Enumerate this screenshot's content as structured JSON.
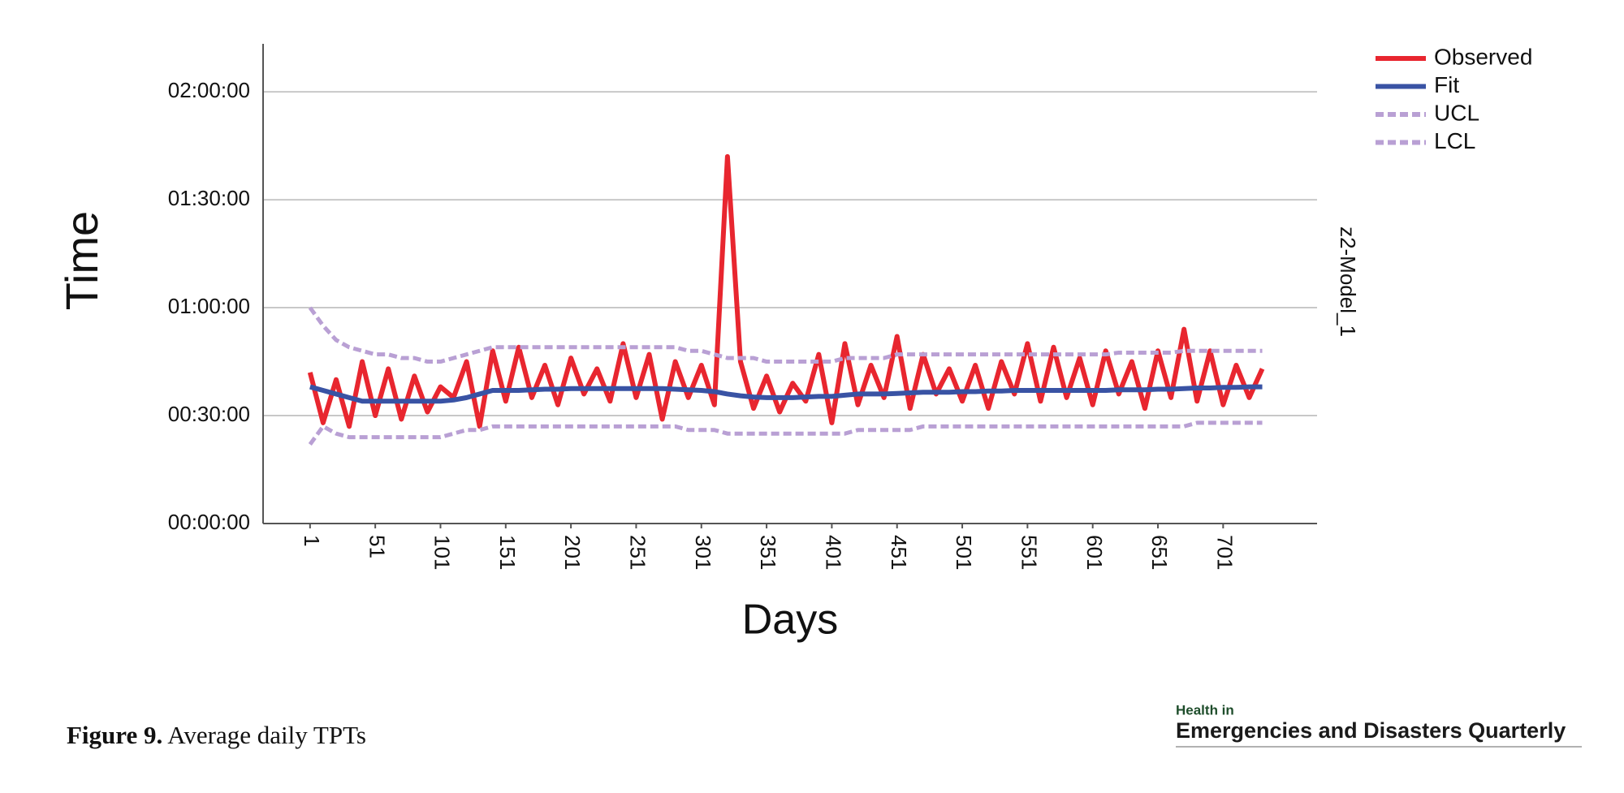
{
  "chart_data": {
    "type": "line",
    "y_axis_label": "Time",
    "x_axis_label": "Days",
    "side_label": "z2-Model_1",
    "x": [
      1,
      11,
      21,
      31,
      41,
      51,
      61,
      71,
      81,
      91,
      101,
      111,
      121,
      131,
      141,
      151,
      161,
      171,
      181,
      191,
      201,
      211,
      221,
      231,
      241,
      251,
      261,
      271,
      281,
      291,
      301,
      311,
      321,
      331,
      341,
      351,
      361,
      371,
      381,
      391,
      401,
      411,
      421,
      431,
      441,
      451,
      461,
      471,
      481,
      491,
      501,
      511,
      521,
      531,
      541,
      551,
      561,
      571,
      581,
      591,
      601,
      611,
      621,
      631,
      641,
      651,
      661,
      671,
      681,
      691,
      701,
      711,
      721,
      731
    ],
    "series": [
      {
        "name": "Observed",
        "color": "#e8262f",
        "dash": false,
        "values": [
          2520,
          1680,
          2400,
          1620,
          2700,
          1800,
          2580,
          1740,
          2460,
          1860,
          2280,
          2100,
          2700,
          1620,
          2880,
          2040,
          2940,
          2100,
          2640,
          1980,
          2760,
          2160,
          2580,
          2040,
          3000,
          2100,
          2820,
          1740,
          2700,
          2100,
          2640,
          1980,
          6120,
          2700,
          1920,
          2460,
          1860,
          2340,
          2040,
          2820,
          1680,
          3000,
          1980,
          2640,
          2100,
          3120,
          1920,
          2820,
          2160,
          2580,
          2040,
          2640,
          1920,
          2700,
          2160,
          3000,
          2040,
          2940,
          2100,
          2760,
          1980,
          2880,
          2160,
          2700,
          1920,
          2880,
          2100,
          3240,
          2040,
          2880,
          1980,
          2640,
          2100,
          2580
        ]
      },
      {
        "name": "Fit",
        "color": "#3953a4",
        "dash": false,
        "values": [
          2280,
          2220,
          2160,
          2100,
          2040,
          2040,
          2040,
          2040,
          2040,
          2040,
          2040,
          2060,
          2100,
          2160,
          2220,
          2220,
          2220,
          2230,
          2240,
          2240,
          2250,
          2250,
          2250,
          2250,
          2250,
          2250,
          2250,
          2250,
          2240,
          2230,
          2220,
          2200,
          2160,
          2130,
          2110,
          2100,
          2100,
          2100,
          2110,
          2120,
          2120,
          2140,
          2160,
          2160,
          2160,
          2170,
          2180,
          2190,
          2190,
          2190,
          2200,
          2200,
          2210,
          2210,
          2220,
          2220,
          2220,
          2220,
          2220,
          2220,
          2220,
          2220,
          2230,
          2230,
          2230,
          2240,
          2240,
          2250,
          2260,
          2260,
          2270,
          2270,
          2280,
          2280
        ]
      },
      {
        "name": "UCL",
        "color": "#b9a0d4",
        "dash": true,
        "values": [
          3600,
          3300,
          3060,
          2940,
          2880,
          2820,
          2820,
          2760,
          2760,
          2700,
          2700,
          2760,
          2820,
          2880,
          2940,
          2940,
          2940,
          2940,
          2940,
          2940,
          2940,
          2940,
          2940,
          2940,
          2940,
          2940,
          2940,
          2940,
          2940,
          2880,
          2880,
          2820,
          2760,
          2760,
          2760,
          2700,
          2700,
          2700,
          2700,
          2700,
          2700,
          2760,
          2760,
          2760,
          2760,
          2820,
          2820,
          2820,
          2820,
          2820,
          2820,
          2820,
          2820,
          2820,
          2820,
          2820,
          2820,
          2820,
          2820,
          2820,
          2820,
          2820,
          2850,
          2850,
          2850,
          2850,
          2850,
          2880,
          2880,
          2880,
          2880,
          2880,
          2880,
          2880
        ]
      },
      {
        "name": "LCL",
        "color": "#b9a0d4",
        "dash": true,
        "values": [
          1320,
          1620,
          1500,
          1440,
          1440,
          1440,
          1440,
          1440,
          1440,
          1440,
          1440,
          1500,
          1560,
          1560,
          1620,
          1620,
          1620,
          1620,
          1620,
          1620,
          1620,
          1620,
          1620,
          1620,
          1620,
          1620,
          1620,
          1620,
          1620,
          1560,
          1560,
          1560,
          1500,
          1500,
          1500,
          1500,
          1500,
          1500,
          1500,
          1500,
          1500,
          1500,
          1560,
          1560,
          1560,
          1560,
          1560,
          1620,
          1620,
          1620,
          1620,
          1620,
          1620,
          1620,
          1620,
          1620,
          1620,
          1620,
          1620,
          1620,
          1620,
          1620,
          1620,
          1620,
          1620,
          1620,
          1620,
          1620,
          1680,
          1680,
          1680,
          1680,
          1680,
          1680
        ]
      }
    ],
    "xlim": [
      -35,
      773
    ],
    "xticks": [
      1,
      51,
      101,
      151,
      201,
      251,
      301,
      351,
      401,
      451,
      501,
      551,
      601,
      651,
      701
    ],
    "ylim": [
      0,
      8000
    ],
    "yticks": [
      {
        "value": 0,
        "label": "00:00:00"
      },
      {
        "value": 1800,
        "label": "00:30:00"
      },
      {
        "value": 3600,
        "label": "01:00:00"
      },
      {
        "value": 5400,
        "label": "01:30:00"
      },
      {
        "value": 7200,
        "label": "02:00:00"
      }
    ],
    "grid": true,
    "legend": "upper right"
  },
  "caption": {
    "label": "Figure 9.",
    "text": "Average daily TPTs"
  },
  "logo": {
    "line1": "Health in",
    "line2": "Emergencies and Disasters Quarterly"
  }
}
